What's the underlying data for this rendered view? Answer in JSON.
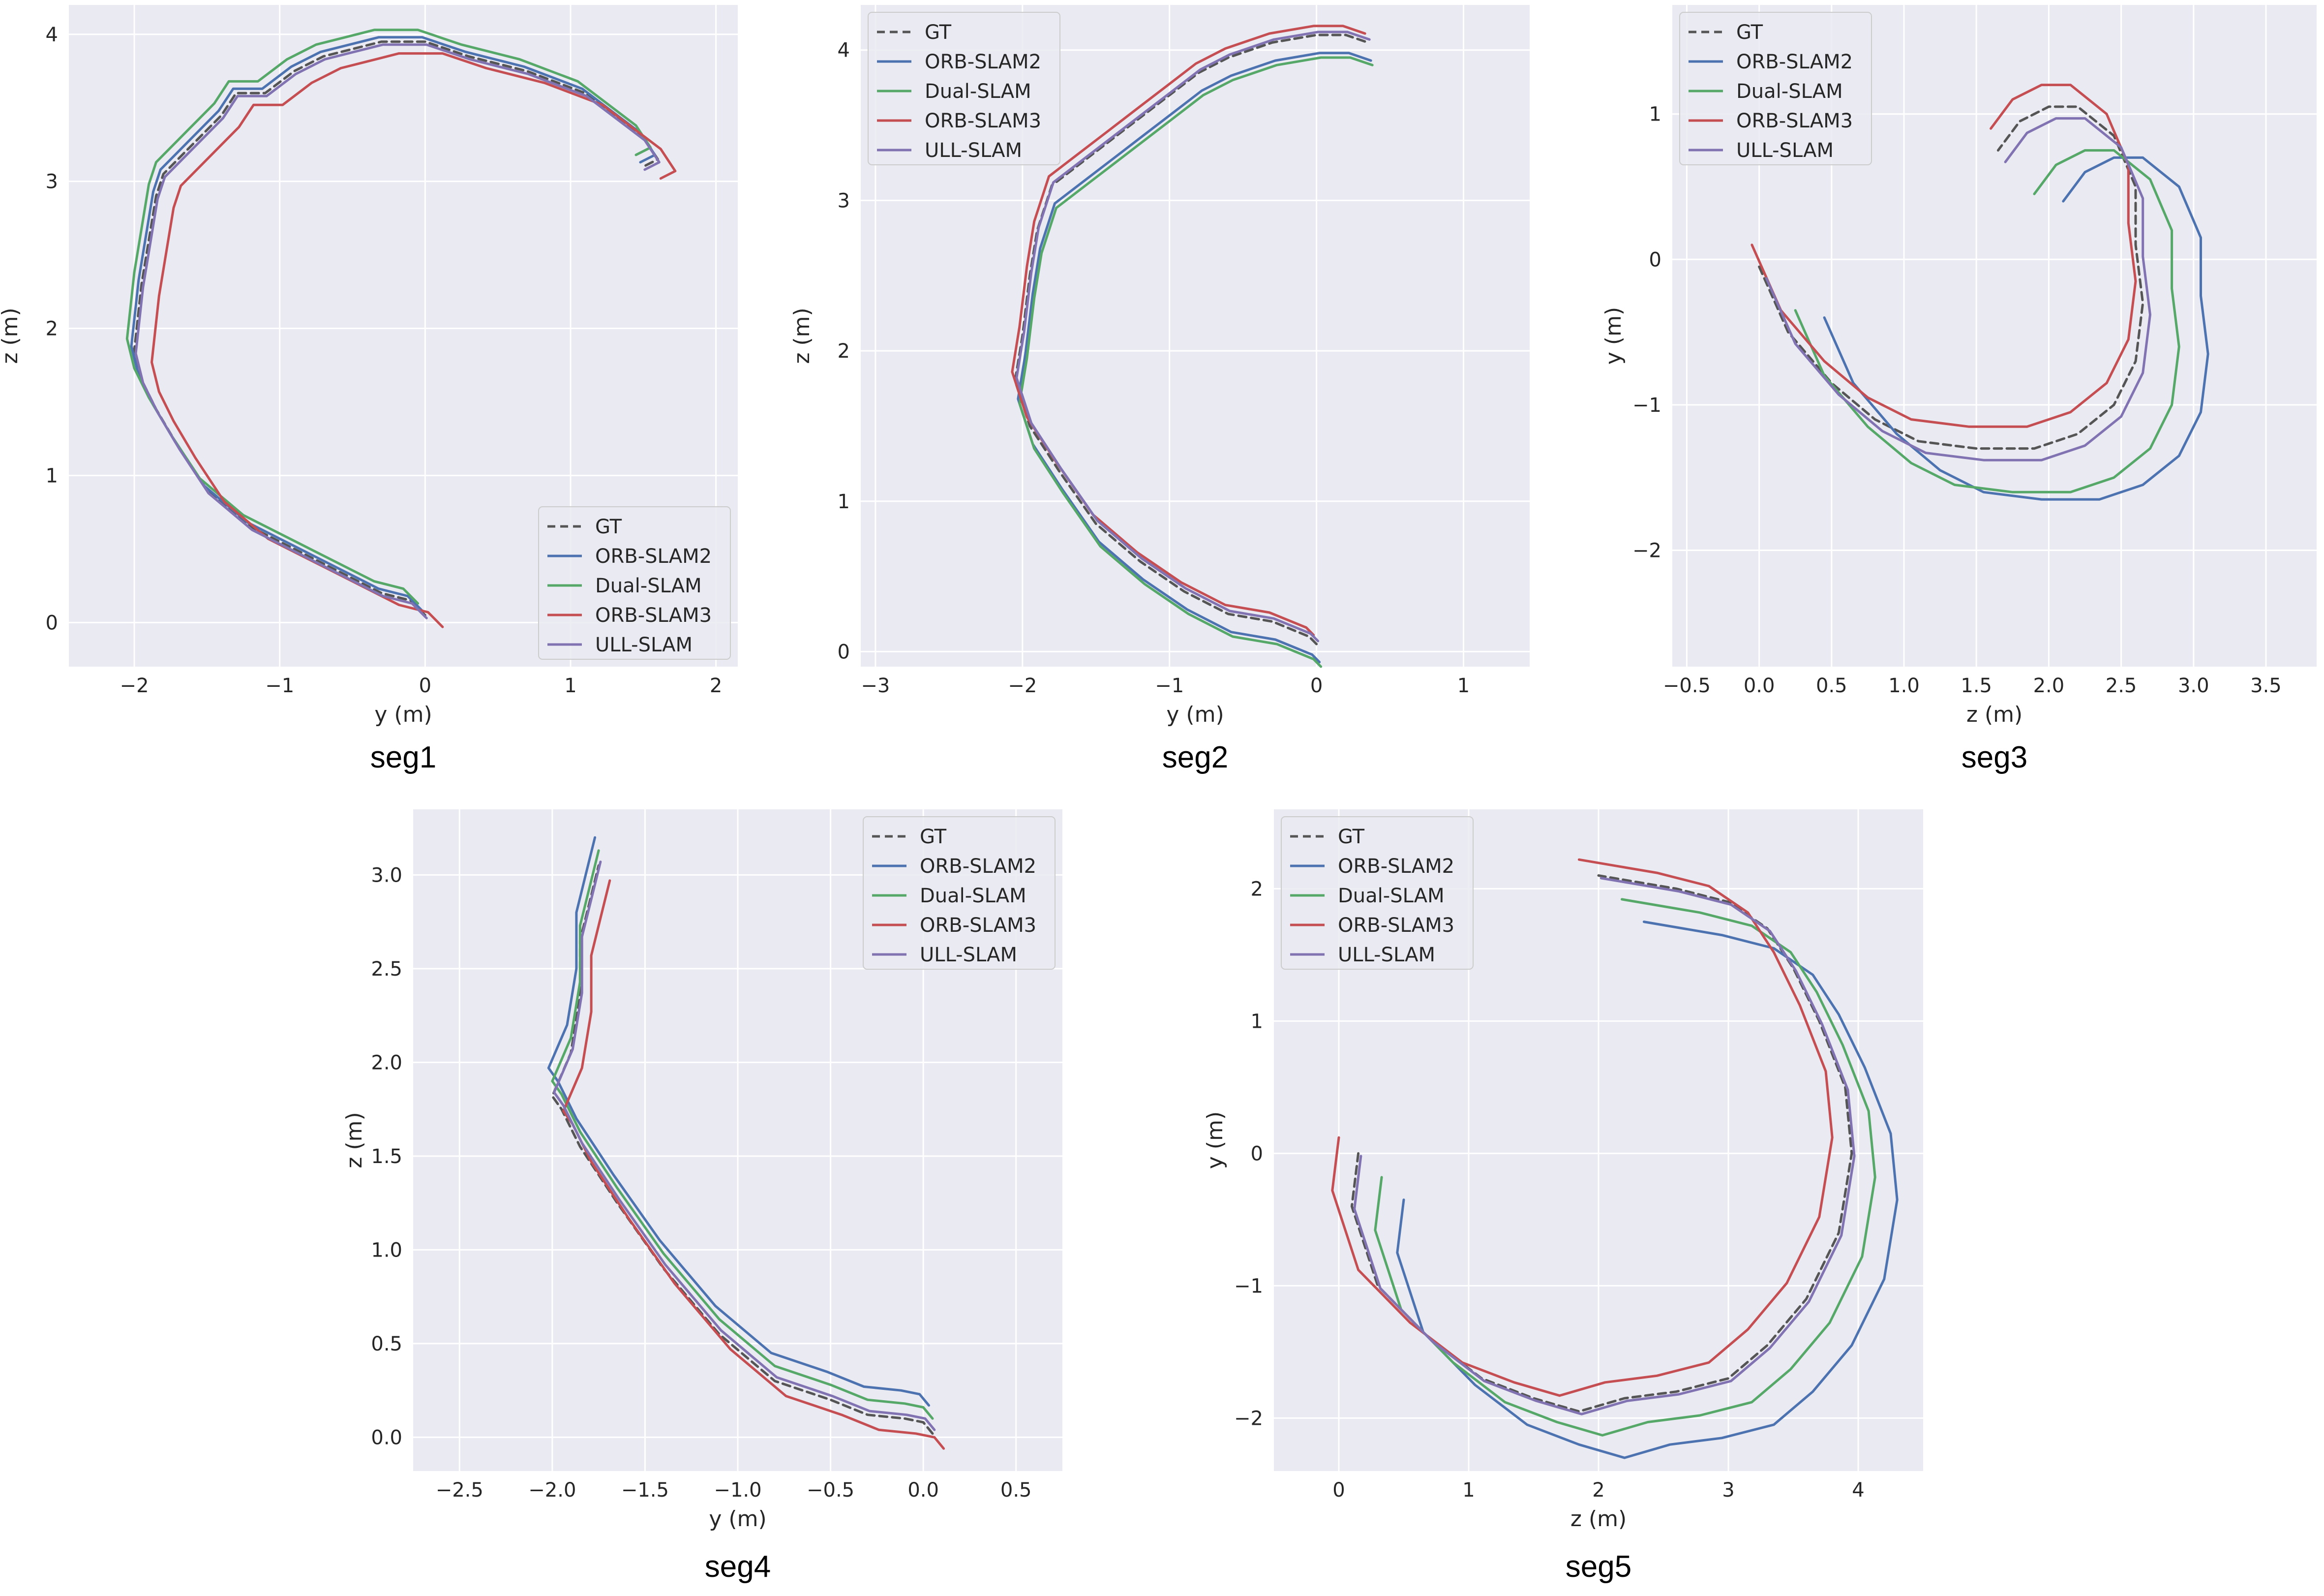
{
  "figure": {
    "title": "",
    "subplot_labels": [
      "seg1",
      "seg2",
      "seg3",
      "seg4",
      "seg5"
    ]
  },
  "series_styles": [
    {
      "name": "GT",
      "color": "#555555",
      "dash": true
    },
    {
      "name": "ORB-SLAM2",
      "color": "#4c72b0",
      "dash": false
    },
    {
      "name": "Dual-SLAM",
      "color": "#55a868",
      "dash": false
    },
    {
      "name": "ORB-SLAM3",
      "color": "#c44e52",
      "dash": false
    },
    {
      "name": "ULL-SLAM",
      "color": "#8172b2",
      "dash": false
    }
  ],
  "chart_data": [
    {
      "type": "line",
      "title": "seg1",
      "xlabel": "y (m)",
      "ylabel": "z (m)",
      "xlim": [
        -2.45,
        2.15
      ],
      "ylim": [
        -0.3,
        4.2
      ],
      "xticks": [
        -2,
        -1,
        0,
        1,
        2
      ],
      "xtick_labels": [
        "−2",
        "−1",
        "0",
        "1",
        "2"
      ],
      "yticks": [
        0,
        1,
        2,
        3,
        4
      ],
      "ytick_labels": [
        "0",
        "1",
        "2",
        "3",
        "4"
      ],
      "grid": true,
      "legend_position": "lower-right",
      "base_path": {
        "x": [
          0.0,
          -0.1,
          -0.3,
          -0.4,
          -0.8,
          -1.2,
          -1.5,
          -1.7,
          -1.85,
          -1.95,
          -2.0,
          -1.95,
          -1.9,
          -1.85,
          -1.8,
          -1.6,
          -1.4,
          -1.3,
          -1.1,
          -0.9,
          -0.7,
          -0.5,
          -0.3,
          0.0,
          0.3,
          0.7,
          1.1,
          1.3,
          1.5,
          1.6,
          1.5
        ],
        "y": [
          0.05,
          0.15,
          0.2,
          0.25,
          0.45,
          0.65,
          0.9,
          1.2,
          1.45,
          1.65,
          1.85,
          2.3,
          2.6,
          2.9,
          3.05,
          3.25,
          3.45,
          3.6,
          3.6,
          3.75,
          3.85,
          3.9,
          3.95,
          3.95,
          3.85,
          3.75,
          3.6,
          3.45,
          3.3,
          3.15,
          3.1
        ]
      },
      "series": [
        {
          "name": "GT",
          "dx": 0.0,
          "dy": 0.0
        },
        {
          "name": "ORB-SLAM2",
          "dx": -0.02,
          "dy": 0.03
        },
        {
          "name": "Dual-SLAM",
          "dx": -0.05,
          "dy": 0.08
        },
        {
          "name": "ORB-SLAM3",
          "dx": 0.12,
          "dy": -0.08
        },
        {
          "name": "ULL-SLAM",
          "dx": 0.01,
          "dy": -0.02
        }
      ]
    },
    {
      "type": "line",
      "title": "seg2",
      "xlabel": "y (m)",
      "ylabel": "z (m)",
      "xlim": [
        -3.1,
        1.45
      ],
      "ylim": [
        -0.1,
        4.3
      ],
      "xticks": [
        -3,
        -2,
        -1,
        0,
        1
      ],
      "xtick_labels": [
        "−3",
        "−2",
        "−1",
        "0",
        "1"
      ],
      "yticks": [
        0,
        1,
        2,
        3,
        4
      ],
      "ytick_labels": [
        "0",
        "1",
        "2",
        "3",
        "4"
      ],
      "grid": true,
      "legend_position": "upper-left",
      "base_path": {
        "x": [
          0.0,
          -0.05,
          -0.3,
          -0.6,
          -0.9,
          -1.2,
          -1.5,
          -1.75,
          -1.95,
          -2.05,
          -2.0,
          -1.95,
          -1.9,
          -1.8,
          -1.6,
          -1.4,
          -1.2,
          -1.0,
          -0.8,
          -0.6,
          -0.3,
          0.0,
          0.2,
          0.35
        ],
        "y": [
          0.05,
          0.1,
          0.2,
          0.25,
          0.4,
          0.6,
          0.85,
          1.2,
          1.5,
          1.8,
          2.1,
          2.5,
          2.8,
          3.1,
          3.25,
          3.4,
          3.55,
          3.7,
          3.85,
          3.95,
          4.05,
          4.1,
          4.1,
          4.05
        ]
      },
      "series": [
        {
          "name": "GT",
          "dx": 0.0,
          "dy": 0.0
        },
        {
          "name": "ORB-SLAM2",
          "dx": 0.02,
          "dy": -0.12
        },
        {
          "name": "Dual-SLAM",
          "dx": 0.03,
          "dy": -0.15
        },
        {
          "name": "ORB-SLAM3",
          "dx": -0.02,
          "dy": 0.06
        },
        {
          "name": "ULL-SLAM",
          "dx": 0.01,
          "dy": 0.02
        }
      ]
    },
    {
      "type": "line",
      "title": "seg3",
      "xlabel": "z (m)",
      "ylabel": "y (m)",
      "xlim": [
        -0.6,
        3.85
      ],
      "ylim": [
        -2.8,
        1.75
      ],
      "xticks": [
        -0.5,
        0.0,
        0.5,
        1.0,
        1.5,
        2.0,
        2.5,
        3.0,
        3.5
      ],
      "xtick_labels": [
        "−0.5",
        "0.0",
        "0.5",
        "1.0",
        "1.5",
        "2.0",
        "2.5",
        "3.0",
        "3.5"
      ],
      "yticks": [
        -2,
        -1,
        0,
        1
      ],
      "ytick_labels": [
        "−2",
        "−1",
        "0",
        "1"
      ],
      "grid": true,
      "legend_position": "upper-left",
      "base_path": {
        "x": [
          0.0,
          0.2,
          0.5,
          0.8,
          1.1,
          1.5,
          1.9,
          2.2,
          2.45,
          2.6,
          2.65,
          2.6,
          2.6,
          2.45,
          2.2,
          2.0,
          1.8,
          1.65
        ],
        "y": [
          -0.05,
          -0.5,
          -0.85,
          -1.1,
          -1.25,
          -1.3,
          -1.3,
          -1.2,
          -1.0,
          -0.7,
          -0.3,
          0.1,
          0.5,
          0.85,
          1.05,
          1.05,
          0.95,
          0.75
        ]
      },
      "series": [
        {
          "name": "GT",
          "dx": 0.0,
          "dy": 0.0
        },
        {
          "name": "ORB-SLAM2",
          "dx": 0.45,
          "dy": -0.35
        },
        {
          "name": "Dual-SLAM",
          "dx": 0.25,
          "dy": -0.3
        },
        {
          "name": "ORB-SLAM3",
          "dx": -0.05,
          "dy": 0.15
        },
        {
          "name": "ULL-SLAM",
          "dx": 0.05,
          "dy": -0.08
        }
      ]
    },
    {
      "type": "line",
      "title": "seg4",
      "xlabel": "y (m)",
      "ylabel": "z (m)",
      "xlim": [
        -2.75,
        0.75
      ],
      "ylim": [
        -0.18,
        3.35
      ],
      "xticks": [
        -2.5,
        -2.0,
        -1.5,
        -1.0,
        -0.5,
        0.0,
        0.5
      ],
      "xtick_labels": [
        "−2.5",
        "−2.0",
        "−1.5",
        "−1.0",
        "−0.5",
        "0.0",
        "0.5"
      ],
      "yticks": [
        0.0,
        0.5,
        1.0,
        1.5,
        2.0,
        2.5,
        3.0
      ],
      "ytick_labels": [
        "0.0",
        "0.5",
        "1.0",
        "1.5",
        "2.0",
        "2.5",
        "3.0"
      ],
      "grid": true,
      "legend_position": "upper-right",
      "base_path": {
        "x": [
          0.05,
          0.0,
          -0.1,
          -0.3,
          -0.5,
          -0.8,
          -1.1,
          -1.4,
          -1.65,
          -1.85,
          -1.95,
          -2.0,
          -1.9,
          -1.85,
          -1.85,
          -1.8,
          -1.75
        ],
        "y": [
          0.02,
          0.08,
          0.1,
          0.12,
          0.2,
          0.3,
          0.55,
          0.9,
          1.25,
          1.55,
          1.75,
          1.82,
          2.05,
          2.35,
          2.65,
          2.85,
          3.05
        ]
      },
      "series": [
        {
          "name": "GT",
          "dx": 0.0,
          "dy": 0.0
        },
        {
          "name": "ORB-SLAM2",
          "dx": -0.02,
          "dy": 0.15
        },
        {
          "name": "Dual-SLAM",
          "dx": 0.0,
          "dy": 0.08
        },
        {
          "name": "ORB-SLAM3",
          "dx": 0.06,
          "dy": -0.08
        },
        {
          "name": "ULL-SLAM",
          "dx": 0.01,
          "dy": 0.02
        }
      ]
    },
    {
      "type": "line",
      "title": "seg5",
      "xlabel": "z (m)",
      "ylabel": "y (m)",
      "xlim": [
        -0.5,
        4.5
      ],
      "ylim": [
        -2.4,
        2.6
      ],
      "xticks": [
        0,
        1,
        2,
        3,
        4
      ],
      "xtick_labels": [
        "0",
        "1",
        "2",
        "3",
        "4"
      ],
      "yticks": [
        -2,
        -1,
        0,
        1,
        2
      ],
      "ytick_labels": [
        "−2",
        "−1",
        "0",
        "1",
        "2"
      ],
      "grid": true,
      "legend_position": "upper-left",
      "base_path": {
        "x": [
          0.15,
          0.1,
          0.3,
          0.7,
          1.1,
          1.5,
          1.85,
          2.2,
          2.6,
          3.0,
          3.3,
          3.6,
          3.85,
          3.95,
          3.9,
          3.7,
          3.5,
          3.3,
          3.0,
          2.6,
          2.3,
          2.0
        ],
        "y": [
          0.0,
          -0.4,
          -1.0,
          -1.4,
          -1.7,
          -1.85,
          -1.95,
          -1.85,
          -1.8,
          -1.7,
          -1.45,
          -1.1,
          -0.6,
          0.0,
          0.5,
          1.0,
          1.4,
          1.7,
          1.9,
          2.0,
          2.05,
          2.1
        ]
      },
      "series": [
        {
          "name": "GT",
          "dx": 0.0,
          "dy": 0.0
        },
        {
          "name": "ORB-SLAM2",
          "dx": 0.35,
          "dy": -0.35
        },
        {
          "name": "Dual-SLAM",
          "dx": 0.18,
          "dy": -0.18
        },
        {
          "name": "ORB-SLAM3",
          "dx": -0.15,
          "dy": 0.12
        },
        {
          "name": "ULL-SLAM",
          "dx": 0.02,
          "dy": -0.02
        }
      ]
    }
  ]
}
